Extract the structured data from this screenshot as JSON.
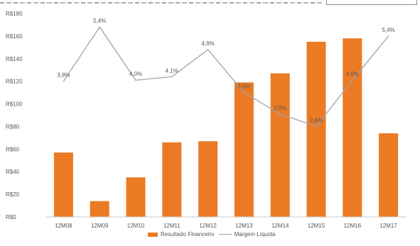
{
  "chart_data": {
    "type": "bar",
    "categories": [
      "12M08",
      "12M09",
      "12M10",
      "12M11",
      "12M12",
      "12M13",
      "12M14",
      "12M15",
      "12M16",
      "12M17"
    ],
    "series": [
      {
        "name": "Resultado Financeiro",
        "type": "bar",
        "values": [
          57,
          14,
          35,
          66,
          67,
          119,
          127,
          155,
          158,
          74
        ],
        "color": "#ec7a25"
      },
      {
        "name": "Margem Líquida",
        "type": "line",
        "values": [
          120,
          168,
          121,
          124,
          148,
          110,
          91,
          80,
          121,
          160
        ],
        "labels": [
          "3,8%",
          "5,4%",
          "4,0%",
          "4,1%",
          "4,9%",
          "3,5%",
          "2,9%",
          "2,6%",
          "4,0%",
          "5,4%"
        ],
        "color": "#9aa3ad"
      }
    ],
    "yticks": [
      "R$0",
      "R$20",
      "R$40",
      "R$60",
      "R$80",
      "R$100",
      "R$120",
      "R$140",
      "R$160",
      "R$180"
    ],
    "ylim": [
      0,
      180
    ],
    "grid": false,
    "legend_position": "bottom"
  }
}
